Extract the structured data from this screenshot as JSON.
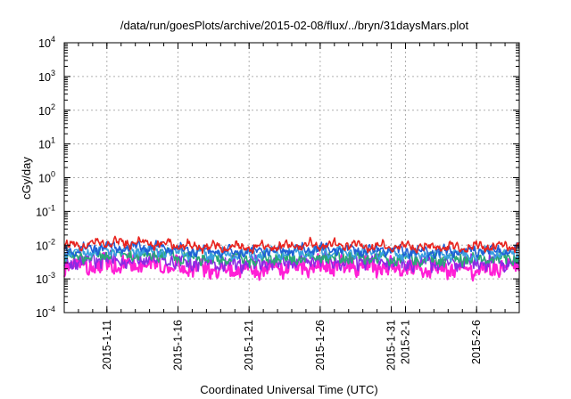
{
  "chart_data": {
    "type": "line",
    "title": "/data/run/goesPlots/archive/2015-02-08/flux/../bryn/31daysMars.plot",
    "xlabel": "Coordinated Universal Time (UTC)",
    "ylabel": "cGy/day",
    "yscale": "log",
    "ylim": [
      0.0001,
      10000
    ],
    "y_ticks": [
      {
        "base": "10",
        "exp": "-4"
      },
      {
        "base": "10",
        "exp": "-3"
      },
      {
        "base": "10",
        "exp": "-2"
      },
      {
        "base": "10",
        "exp": "-1"
      },
      {
        "base": "10",
        "exp": "0"
      },
      {
        "base": "10",
        "exp": "1"
      },
      {
        "base": "10",
        "exp": "2"
      },
      {
        "base": "10",
        "exp": "3"
      },
      {
        "base": "10",
        "exp": "4"
      }
    ],
    "xlim": [
      "2015-01-08",
      "2015-02-09"
    ],
    "x_ticks": [
      {
        "date": "2015-01-11",
        "label": "2015-1-11"
      },
      {
        "date": "2015-01-16",
        "label": "2015-1-16"
      },
      {
        "date": "2015-01-21",
        "label": "2015-1-21"
      },
      {
        "date": "2015-01-26",
        "label": "2015-1-26"
      },
      {
        "date": "2015-01-31",
        "label": "2015-1-31"
      },
      {
        "date": "2015-02-01",
        "label": "2015-2-1"
      },
      {
        "date": "2015-02-06",
        "label": "2015-2-6"
      }
    ],
    "grid": true,
    "legend": "none",
    "series": [
      {
        "color": "#e8231e",
        "base": 0.0095,
        "spread": 0.18,
        "x": [
          "2015-01-08",
          "2015-01-11",
          "2015-01-14",
          "2015-01-17",
          "2015-01-20",
          "2015-01-23",
          "2015-01-26",
          "2015-01-29",
          "2015-02-01",
          "2015-02-04",
          "2015-02-07",
          "2015-02-09"
        ],
        "y": [
          0.0095,
          0.0115,
          0.012,
          0.009,
          0.0085,
          0.009,
          0.0105,
          0.0095,
          0.009,
          0.0085,
          0.009,
          0.0095
        ]
      },
      {
        "color": "#1f5fd6",
        "base": 0.0072,
        "spread": 0.2,
        "x": [
          "2015-01-08",
          "2015-01-11",
          "2015-01-14",
          "2015-01-17",
          "2015-01-20",
          "2015-01-23",
          "2015-01-26",
          "2015-01-29",
          "2015-02-01",
          "2015-02-04",
          "2015-02-07",
          "2015-02-09"
        ],
        "y": [
          0.0072,
          0.0085,
          0.009,
          0.0068,
          0.0065,
          0.0068,
          0.008,
          0.0072,
          0.0068,
          0.0064,
          0.0068,
          0.0072
        ]
      },
      {
        "color": "#3aa0e0",
        "base": 0.0058,
        "spread": 0.22,
        "x": [
          "2015-01-08",
          "2015-01-11",
          "2015-01-14",
          "2015-01-17",
          "2015-01-20",
          "2015-01-23",
          "2015-01-26",
          "2015-01-29",
          "2015-02-01",
          "2015-02-04",
          "2015-02-07",
          "2015-02-09"
        ],
        "y": [
          0.0058,
          0.0068,
          0.007,
          0.0055,
          0.0052,
          0.0055,
          0.0065,
          0.0058,
          0.0055,
          0.0052,
          0.0055,
          0.0058
        ]
      },
      {
        "color": "#2aa876",
        "base": 0.0042,
        "spread": 0.3,
        "x": [
          "2015-01-08",
          "2015-01-11",
          "2015-01-14",
          "2015-01-17",
          "2015-01-20",
          "2015-01-23",
          "2015-01-26",
          "2015-01-29",
          "2015-02-01",
          "2015-02-04",
          "2015-02-07",
          "2015-02-09"
        ],
        "y": [
          0.0042,
          0.005,
          0.0052,
          0.004,
          0.0038,
          0.004,
          0.0047,
          0.0042,
          0.004,
          0.0037,
          0.004,
          0.0042
        ]
      },
      {
        "color": "#8a2be2",
        "base": 0.0032,
        "spread": 0.35,
        "x": [
          "2015-01-08",
          "2015-01-11",
          "2015-01-14",
          "2015-01-17",
          "2015-01-20",
          "2015-01-23",
          "2015-01-26",
          "2015-01-29",
          "2015-02-01",
          "2015-02-04",
          "2015-02-07",
          "2015-02-09"
        ],
        "y": [
          0.0032,
          0.0037,
          0.0038,
          0.003,
          0.0028,
          0.003,
          0.0035,
          0.0032,
          0.003,
          0.0028,
          0.003,
          0.0032
        ]
      },
      {
        "color": "#ff1fd6",
        "base": 0.0024,
        "spread": 0.45,
        "x": [
          "2015-01-08",
          "2015-01-11",
          "2015-01-14",
          "2015-01-17",
          "2015-01-20",
          "2015-01-23",
          "2015-01-26",
          "2015-01-29",
          "2015-02-01",
          "2015-02-04",
          "2015-02-07",
          "2015-02-09"
        ],
        "y": [
          0.0024,
          0.0027,
          0.0028,
          0.0021,
          0.0019,
          0.0021,
          0.0026,
          0.0023,
          0.0021,
          0.0019,
          0.0021,
          0.0024
        ]
      }
    ]
  }
}
